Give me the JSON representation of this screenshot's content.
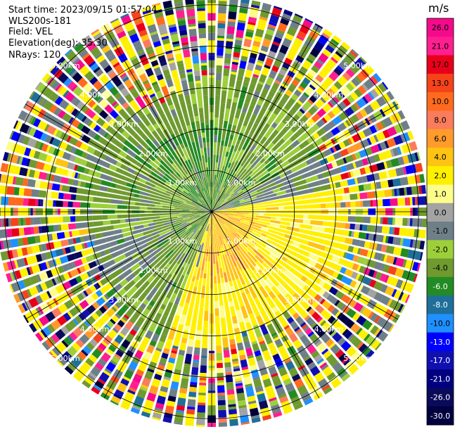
{
  "header": {
    "start_time": "Start time: 2023/09/15 01:57:04",
    "station": "WLS200s-181",
    "field": "Field: VEL",
    "elevation": "Elevation(deg): 35.30",
    "nrays": "NRays: 120"
  },
  "colorbar": {
    "unit": "m/s",
    "levels": [
      {
        "label": "26.0",
        "color": "#f50a8c"
      },
      {
        "label": "21.0",
        "color": "#ff1f8f"
      },
      {
        "label": "17.0",
        "color": "#e8001a"
      },
      {
        "label": "13.0",
        "color": "#f5431a"
      },
      {
        "label": "10.0",
        "color": "#ff6a1f"
      },
      {
        "label": "8.0",
        "color": "#fb7c5b"
      },
      {
        "label": "6.0",
        "color": "#ff9b2b"
      },
      {
        "label": "4.0",
        "color": "#ffc312"
      },
      {
        "label": "2.0",
        "color": "#fff000"
      },
      {
        "label": "1.0",
        "color": "#fdfd8a"
      },
      {
        "label": "0.0",
        "color": "#a3a3a3"
      },
      {
        "label": "-1.0",
        "color": "#6f7f88"
      },
      {
        "label": "-2.0",
        "color": "#9dcf3a"
      },
      {
        "label": "-4.0",
        "color": "#6f9a2f"
      },
      {
        "label": "-6.0",
        "color": "#238b23"
      },
      {
        "label": "-8.0",
        "color": "#1e6f9a"
      },
      {
        "label": "-10.0",
        "color": "#1e90ff"
      },
      {
        "label": "-13.0",
        "color": "#0000ff"
      },
      {
        "label": "-17.0",
        "color": "#1010b0"
      },
      {
        "label": "-21.0",
        "color": "#000080"
      },
      {
        "label": "-26.0",
        "color": "#0a0a5a"
      },
      {
        "label": "-30.0",
        "color": "#000040"
      }
    ]
  },
  "chart_data": {
    "type": "heatmap",
    "subtype": "polar-ppi",
    "nrays": 120,
    "max_range_km": 5.2,
    "range_rings_km": [
      1,
      2,
      3,
      4,
      5
    ],
    "ring_labels": [
      "1.00km",
      "2.00km",
      "3.00km",
      "4.00km",
      "5.00km"
    ],
    "spoke_deg": 30,
    "regions": [
      {
        "name": "negative velocity (green)",
        "azimuth_from": 200,
        "azimuth_to": 80,
        "max_range_km": 3.2
      },
      {
        "name": "positive velocity (yellow/orange)",
        "azimuth_from": 80,
        "azimuth_to": 200,
        "max_range_km": 3.4
      },
      {
        "name": "noise (random colors)",
        "min_range_km": 3.2,
        "max_range_km": 5.2
      }
    ]
  }
}
